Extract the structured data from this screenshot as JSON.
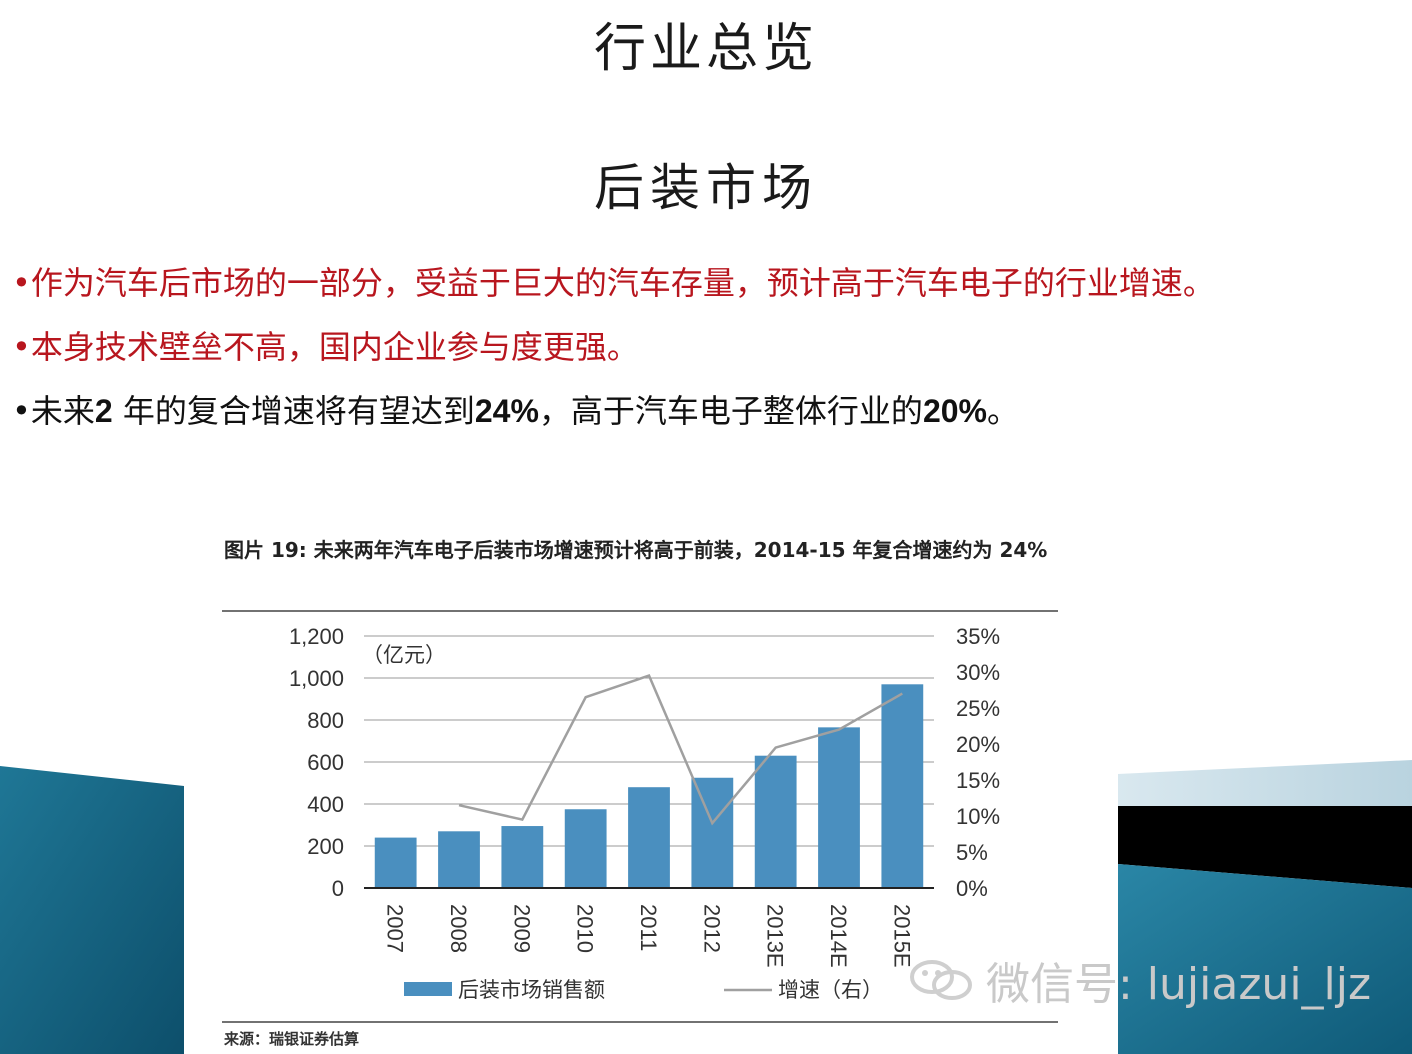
{
  "slide": {
    "title": "行业总览",
    "subtitle": "后装市场",
    "bullets": [
      {
        "text": "•作为汽车后市场的一部分，受益于巨大的汽车存量，预计高于汽车电子的行业增速。"
      },
      {
        "text": "•本身技术壁垒不高，国内企业参与度更强。"
      },
      {
        "parts": [
          "•未来",
          "2",
          " 年的复合增速将有望达到",
          "24%",
          "，高于汽车电子整体行业的",
          "20%",
          "。"
        ]
      }
    ],
    "colors": {
      "bullet_red": "#b8161e",
      "bar": "#4a8fbf",
      "line": "#a0a0a0",
      "deco_teal": "#1d6f8f"
    }
  },
  "watermark": {
    "icon": "wechat-icon",
    "text": "微信号: lujiazui_ljz"
  },
  "chart_data": {
    "type": "bar",
    "title": "图片 19: 未来两年汽车电子后装市场增速预计将高于前装，2014-15 年复合增速约为 24%",
    "unit_label": "（亿元）",
    "categories": [
      "2007",
      "2008",
      "2009",
      "2010",
      "2011",
      "2012",
      "2013E",
      "2014E",
      "2015E"
    ],
    "series": [
      {
        "name": "后装市场销售额",
        "type": "bar",
        "axis": "left",
        "values": [
          240,
          270,
          295,
          375,
          480,
          525,
          630,
          765,
          970
        ]
      },
      {
        "name": "增速（右）",
        "type": "line",
        "axis": "right",
        "values": [
          null,
          11.5,
          9.5,
          26.5,
          29.5,
          9.0,
          19.5,
          22.0,
          27.0
        ]
      }
    ],
    "yleft": {
      "ticks": [
        "0",
        "200",
        "400",
        "600",
        "800",
        "1,000",
        "1,200"
      ],
      "lim": [
        0,
        1200
      ]
    },
    "yright": {
      "ticks": [
        "0%",
        "5%",
        "10%",
        "15%",
        "20%",
        "25%",
        "30%",
        "35%"
      ],
      "lim": [
        0,
        35
      ]
    },
    "grid": true,
    "legend": "bottom",
    "source": "来源：瑞银证券估算"
  }
}
